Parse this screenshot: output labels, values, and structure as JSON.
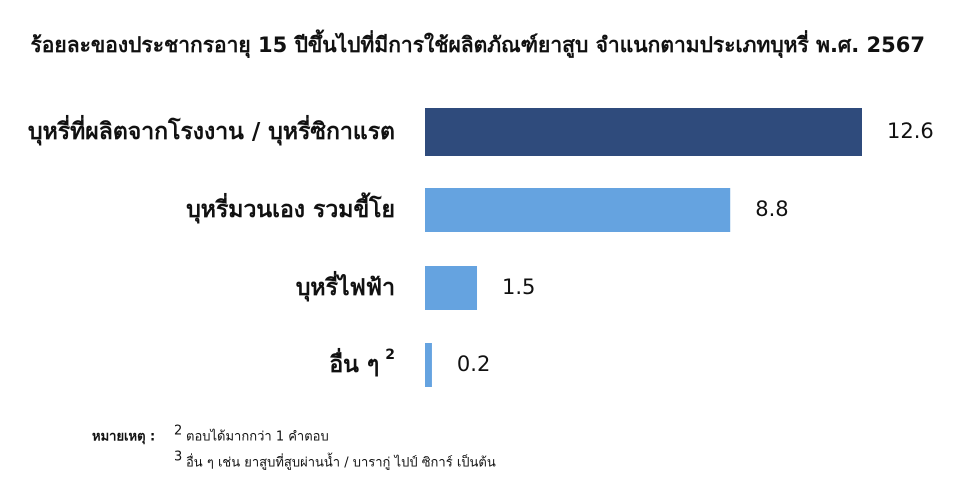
{
  "chart_data": {
    "type": "bar",
    "orientation": "horizontal",
    "title": "ร้อยละของประชากรอายุ 15 ปีขึ้นไปที่มีการใช้ผลิตภัณฑ์ยาสูบ จำแนกตามประเภทบุหรี่  พ.ศ. 2567",
    "categories": [
      "บุหรี่ที่ผลิตจากโรงงาน / บุหรี่ซิกาแรต",
      "บุหรี่มวนเอง รวมขี้โย",
      "บุหรี่ไฟฟ้า",
      "อื่น ๆ"
    ],
    "category_marks": [
      null,
      null,
      null,
      "2"
    ],
    "values": [
      12.6,
      8.8,
      1.5,
      0.2
    ],
    "colors": [
      "#2f4b7c",
      "#65a3e0",
      "#65a3e0",
      "#65a3e0"
    ],
    "value_label_colors": [
      "#a3262a",
      "#111111",
      "#111111",
      "#111111"
    ],
    "notes_label": "หมายเหตุ :",
    "notes": [
      {
        "mark": "2",
        "text": "ตอบได้มากกว่า 1 คำตอบ"
      },
      {
        "mark": "3",
        "text": "อื่น ๆ เช่น ยาสูบที่สูบผ่านน้ำ / บารากู่ ไปป์ ซิการ์ เป็นต้น"
      }
    ]
  }
}
